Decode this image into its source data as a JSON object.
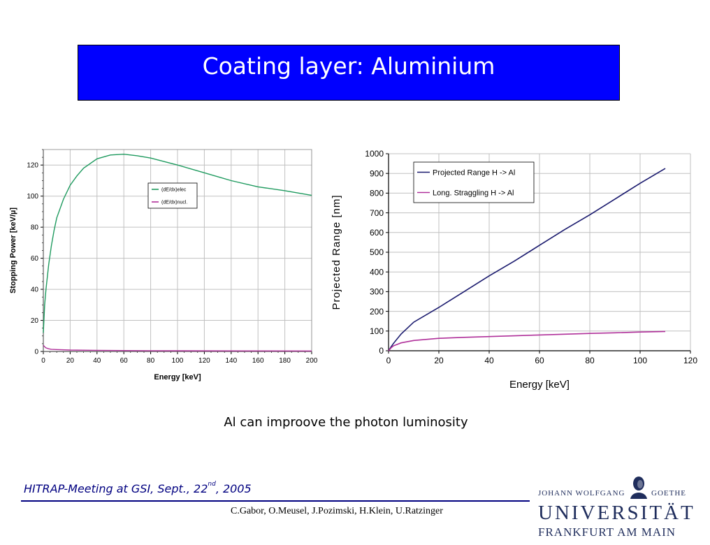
{
  "slide": {
    "title": "Coating layer: Aluminium",
    "caption": "Al can improove the photon luminosity",
    "meeting_main": "HITRAP-Meeting at GSI, Sept., 22",
    "meeting_sup": "nd",
    "meeting_tail": ", 2005",
    "authors": "C.Gabor, O.Meusel, J.Pozimski, H.Klein, U.Ratzinger"
  },
  "logo": {
    "line1a": "JOHANN WOLFGANG",
    "line1b": "GOETHE",
    "line2": "UNIVERSITÄT",
    "line3": "FRANKFURT AM MAIN"
  },
  "colors": {
    "title_bg": "#0000ff",
    "electronic": "#1e9a5e",
    "nuclear": "#b0309a",
    "range": "#1a1a6e",
    "straggling": "#b0309a"
  },
  "chart_data": [
    {
      "type": "line",
      "xlabel": "Energy [keV]",
      "ylabel": "Stopping Power [keV/µ]",
      "xlim": [
        0,
        200
      ],
      "ylim": [
        0,
        130
      ],
      "xticks": [
        "0",
        "20",
        "40",
        "60",
        "80",
        "100",
        "120",
        "140",
        "160",
        "180",
        "200"
      ],
      "yticks": [
        "0",
        "20",
        "40",
        "60",
        "80",
        "100",
        "120"
      ],
      "grid": true,
      "legend_position": "upper-center",
      "series": [
        {
          "name": "(dE/dx)elec",
          "x": [
            0,
            1,
            2,
            4,
            6,
            8,
            10,
            15,
            20,
            25,
            30,
            40,
            50,
            60,
            70,
            80,
            100,
            120,
            140,
            160,
            180,
            200
          ],
          "values": [
            12,
            30,
            40,
            56,
            68,
            78,
            86,
            98,
            107,
            113,
            118,
            124,
            126.5,
            127,
            126,
            124.5,
            120,
            115,
            110,
            106,
            103.5,
            100.5
          ]
        },
        {
          "name": "(dE/dx)nucl.",
          "x": [
            0,
            1,
            2,
            4,
            6,
            10,
            20,
            40,
            60,
            80,
            100,
            150,
            200
          ],
          "values": [
            4,
            3,
            2.3,
            1.7,
            1.4,
            1.2,
            0.9,
            0.7,
            0.6,
            0.5,
            0.45,
            0.35,
            0.3
          ]
        }
      ]
    },
    {
      "type": "line",
      "xlabel": "Energy [keV]",
      "ylabel": "Projected Range [nm]",
      "xlim": [
        0,
        120
      ],
      "ylim": [
        0,
        1000
      ],
      "xticks": [
        "0",
        "20",
        "40",
        "60",
        "80",
        "100",
        "120"
      ],
      "yticks": [
        "0",
        "100",
        "200",
        "300",
        "400",
        "500",
        "600",
        "700",
        "800",
        "900",
        "1000"
      ],
      "grid": true,
      "legend_position": "top-left",
      "series": [
        {
          "name": "Projected Range H -> Al",
          "x": [
            0,
            1,
            2,
            5,
            10,
            20,
            30,
            40,
            50,
            60,
            70,
            80,
            90,
            100,
            110
          ],
          "values": [
            0,
            20,
            38,
            85,
            145,
            220,
            300,
            380,
            455,
            535,
            615,
            690,
            770,
            850,
            925
          ]
        },
        {
          "name": "Long. Straggling H -> Al",
          "x": [
            0,
            1,
            2,
            5,
            10,
            20,
            30,
            40,
            50,
            60,
            70,
            80,
            90,
            100,
            110
          ],
          "values": [
            0,
            15,
            25,
            40,
            52,
            63,
            68,
            72,
            76,
            80,
            84,
            88,
            91,
            95,
            98
          ]
        }
      ]
    }
  ]
}
